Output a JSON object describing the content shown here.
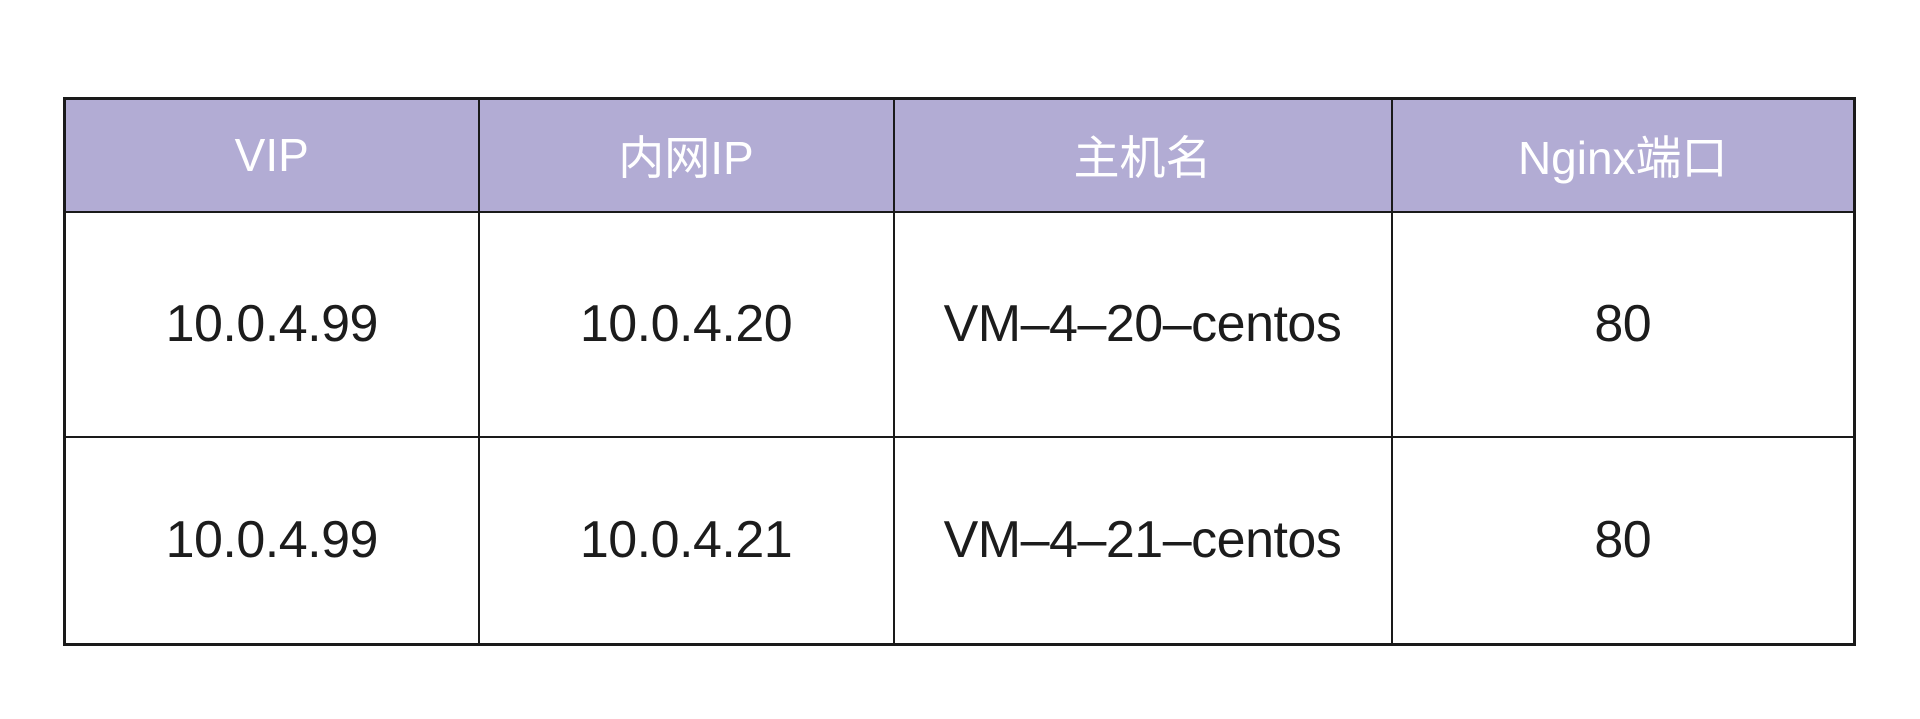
{
  "table": {
    "name": "keepalived-nginx-hosts-table",
    "colors": {
      "header_bg": "#b2acd4",
      "header_text": "#ffffff",
      "body_text": "#1c1c1c",
      "border": "#1a1a1a",
      "page_bg": "#ffffff"
    },
    "headers": [
      "VIP",
      "内网IP",
      "主机名",
      "Nginx端口"
    ],
    "rows": [
      [
        "10.0.4.99",
        "10.0.4.20",
        "VM–4–20–centos",
        "80"
      ],
      [
        "10.0.4.99",
        "10.0.4.21",
        "VM–4–21–centos",
        "80"
      ]
    ]
  }
}
